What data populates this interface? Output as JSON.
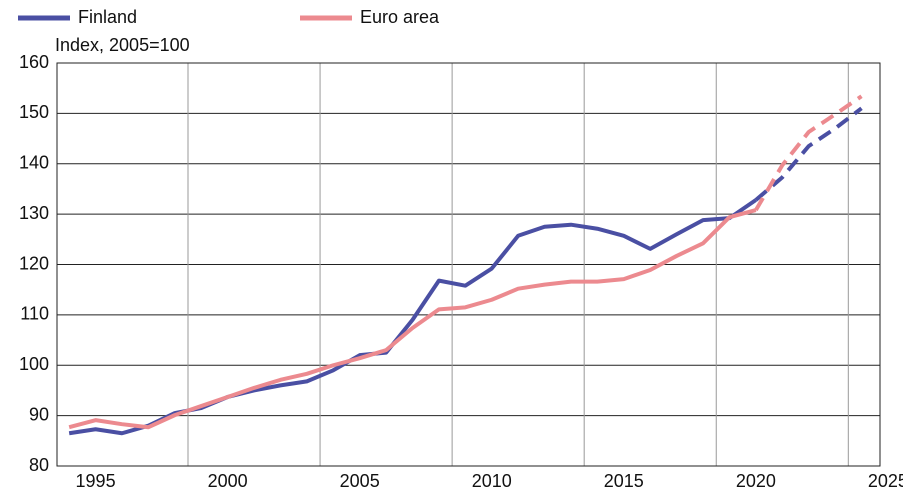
{
  "chart_data": {
    "type": "line",
    "subtitle": "Index, 2005=100",
    "x": [
      1994,
      1995,
      1996,
      1997,
      1998,
      1999,
      2000,
      2001,
      2002,
      2003,
      2004,
      2005,
      2006,
      2007,
      2008,
      2009,
      2010,
      2011,
      2012,
      2013,
      2014,
      2015,
      2016,
      2017,
      2018,
      2019,
      2020,
      2021,
      2022,
      2023,
      2024
    ],
    "series": [
      {
        "name": "Finland",
        "color": "#4a4fa3",
        "values": [
          86.5,
          87.3,
          86.5,
          88,
          90.5,
          91.5,
          93.7,
          95,
          96,
          96.8,
          99,
          102,
          102.5,
          109,
          116.8,
          115.8,
          119.2,
          125.7,
          127.5,
          127.9,
          127.1,
          125.7,
          123.1,
          126,
          128.8,
          129.2,
          132.8,
          137.3,
          143.5,
          147,
          151
        ]
      },
      {
        "name": "Euro area",
        "color": "#ec8a8f",
        "values": [
          87.7,
          89.1,
          88.3,
          87.7,
          90.1,
          91.9,
          93.7,
          95.5,
          97.1,
          98.3,
          100,
          101.4,
          103,
          107.4,
          111.1,
          111.5,
          113,
          115.2,
          116,
          116.6,
          116.6,
          117.1,
          118.9,
          121.7,
          124.2,
          129.4,
          130.8,
          139.7,
          146.3,
          149.8,
          153.4
        ]
      }
    ],
    "dashed_from": 2020,
    "xlim": [
      1993.54,
      2024.7
    ],
    "xticks": [
      1995,
      2000,
      2005,
      2010,
      2015,
      2020,
      2025
    ],
    "xgrid": [
      1998.5,
      2003.5,
      2008.5,
      2013.5,
      2018.5,
      2023.5
    ],
    "ylim": [
      80,
      160
    ],
    "yticks": [
      80,
      90,
      100,
      110,
      120,
      130,
      140,
      150,
      160
    ],
    "grid": true,
    "legend": "top"
  }
}
